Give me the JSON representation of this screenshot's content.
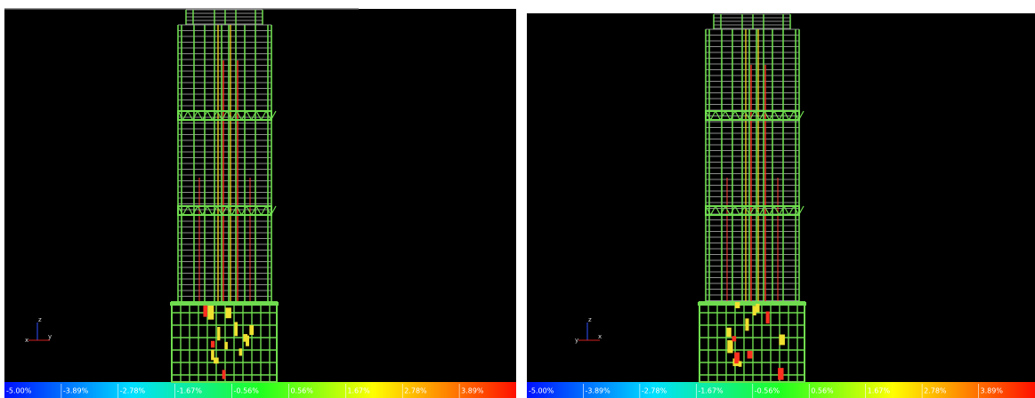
{
  "panels": [
    {
      "axis_labels": {
        "vertical": "z",
        "left": "x",
        "right": "y"
      },
      "legend_labels": [
        "-5.00%",
        "-3.89%",
        "-2.78%",
        "-1.67%",
        "-0.56%",
        "0.56%",
        "1.67%",
        "2.78%",
        "3.89%"
      ]
    },
    {
      "axis_labels": {
        "vertical": "z",
        "left": "y",
        "right": "x"
      },
      "legend_labels": [
        "-5.00%",
        "-3.89%",
        "-2.78%",
        "-1.67%",
        "-0.56%",
        "0.56%",
        "1.67%",
        "2.78%",
        "3.89%"
      ]
    }
  ]
}
